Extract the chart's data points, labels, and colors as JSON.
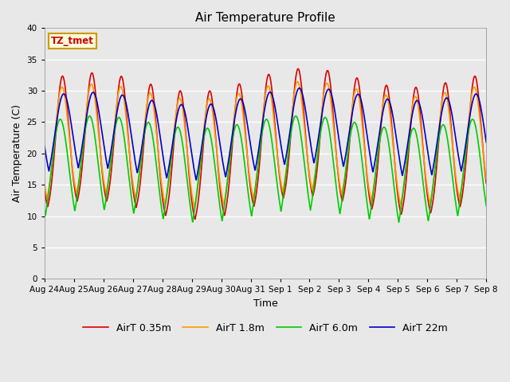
{
  "title": "Air Temperature Profile",
  "xlabel": "Time",
  "ylabel": "Air Temperature (C)",
  "ylim": [
    0,
    40
  ],
  "annotation_text": "TZ_tmet",
  "annotation_color": "#cc0000",
  "annotation_bg": "#ffffdd",
  "annotation_border": "#cc9900",
  "series_labels": [
    "AirT 0.35m",
    "AirT 1.8m",
    "AirT 6.0m",
    "AirT 22m"
  ],
  "series_colors": [
    "#dd0000",
    "#ff9900",
    "#00cc00",
    "#0000cc"
  ],
  "fig_bg": "#e8e8e8",
  "plot_bg": "#e8e8e8",
  "tick_labels": [
    "Aug 24",
    "Aug 25",
    "Aug 26",
    "Aug 27",
    "Aug 28",
    "Aug 29",
    "Aug 30",
    "Aug 31",
    "Sep 1",
    "Sep 2",
    "Sep 3",
    "Sep 4",
    "Sep 5",
    "Sep 6",
    "Sep 7",
    "Sep 8"
  ],
  "grid_color": "#ffffff",
  "title_fontsize": 11,
  "tick_fontsize": 7.5,
  "label_fontsize": 9,
  "legend_fontsize": 9,
  "linewidth": 1.2
}
